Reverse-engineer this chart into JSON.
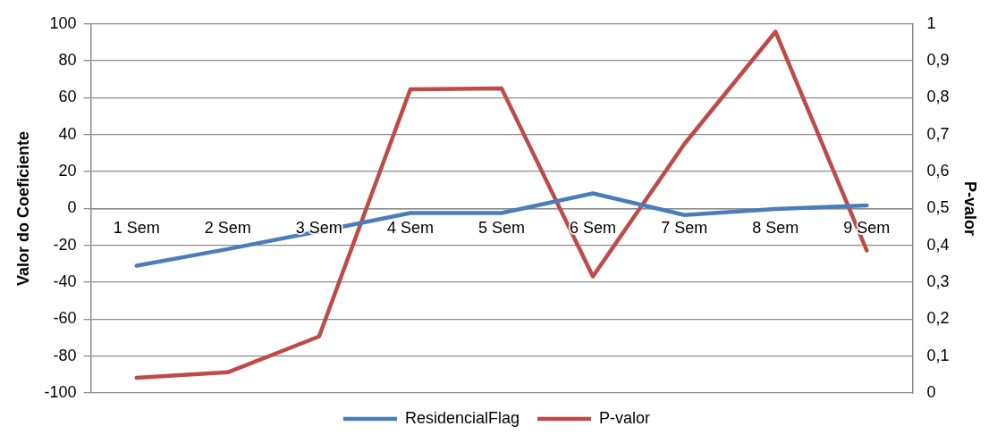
{
  "chart_data": {
    "type": "line",
    "ylabel": "Valor do Coeficiente",
    "y2label": "P-valor",
    "categories": [
      "1 Sem",
      "2 Sem",
      "3 Sem",
      "4 Sem",
      "5 Sem",
      "6 Sem",
      "7 Sem",
      "8 Sem",
      "9 Sem"
    ],
    "series": [
      {
        "name": "ResidencialFlag",
        "color": "#4a7ebb",
        "values": [
          -31,
          -22,
          -12.4,
          -2.5,
          -2.5,
          8.2,
          -3.5,
          -0.3,
          1.6
        ]
      },
      {
        "name": "P-valor",
        "color": "#be4b48",
        "axis": "y2",
        "values": [
          0.041,
          0.056,
          0.153,
          0.823,
          0.825,
          0.316,
          0.674,
          0.979,
          0.386
        ]
      }
    ],
    "ylim": [
      -100,
      100
    ],
    "yticks": [
      -100,
      -80,
      -60,
      -40,
      -20,
      0,
      20,
      40,
      60,
      80,
      100
    ],
    "y2lim": [
      0,
      1
    ],
    "y2ticks": [
      0,
      {
        "value": 0.1,
        "label": "0,1"
      },
      {
        "value": 0.2,
        "label": "0,2"
      },
      {
        "value": 0.3,
        "label": "0,3"
      },
      {
        "value": 0.4,
        "label": "0,4"
      },
      {
        "value": 0.5,
        "label": "0,5"
      },
      {
        "value": 0.6,
        "label": "0,6"
      },
      {
        "value": 0.7,
        "label": "0,7"
      },
      {
        "value": 0.8,
        "label": "0,8"
      },
      {
        "value": 0.9,
        "label": "0,9"
      },
      1
    ],
    "grid": "y",
    "legend": "bottom",
    "marker": "none",
    "line_style": "solid"
  }
}
